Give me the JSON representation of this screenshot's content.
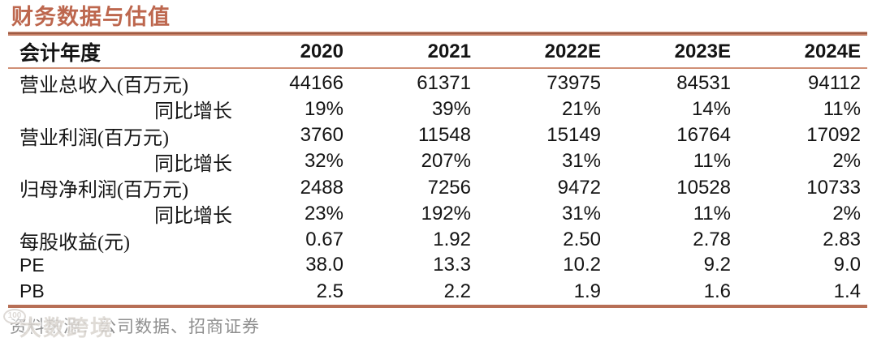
{
  "title": "财务数据与估值",
  "table": {
    "header": [
      "会计年度",
      "2020",
      "2021",
      "2022E",
      "2023E",
      "2024E"
    ],
    "rows": [
      {
        "label": "营业总收入(百万元)",
        "values": [
          "44166",
          "61371",
          "73975",
          "84531",
          "94112"
        ]
      },
      {
        "label": "同比增长",
        "values": [
          "19%",
          "39%",
          "21%",
          "14%",
          "11%"
        ]
      },
      {
        "label": "营业利润(百万元)",
        "values": [
          "3760",
          "11548",
          "15149",
          "16764",
          "17092"
        ]
      },
      {
        "label": "同比增长",
        "values": [
          "32%",
          "207%",
          "31%",
          "11%",
          "2%"
        ]
      },
      {
        "label": "归母净利润(百万元)",
        "values": [
          "2488",
          "7256",
          "9472",
          "10528",
          "10733"
        ]
      },
      {
        "label": "同比增长",
        "values": [
          "23%",
          "192%",
          "31%",
          "11%",
          "2%"
        ]
      },
      {
        "label": "每股收益(元)",
        "values": [
          "0.67",
          "1.92",
          "2.50",
          "2.78",
          "2.83"
        ]
      },
      {
        "label": "PE",
        "values": [
          "38.0",
          "13.3",
          "10.2",
          "9.2",
          "9.0"
        ]
      },
      {
        "label": "PB",
        "values": [
          "2.5",
          "2.2",
          "1.9",
          "1.6",
          "1.4"
        ]
      }
    ]
  },
  "footer": {
    "source": "资料来源：公司数据、招商证券"
  },
  "watermark": {
    "logo": "100",
    "text": "大数跨境"
  },
  "colors": {
    "accent": "#bd674e",
    "rule_thick": "#b76f56",
    "rule_thin": "#d08f76",
    "text": "#141414",
    "muted": "#8f8f8f"
  }
}
